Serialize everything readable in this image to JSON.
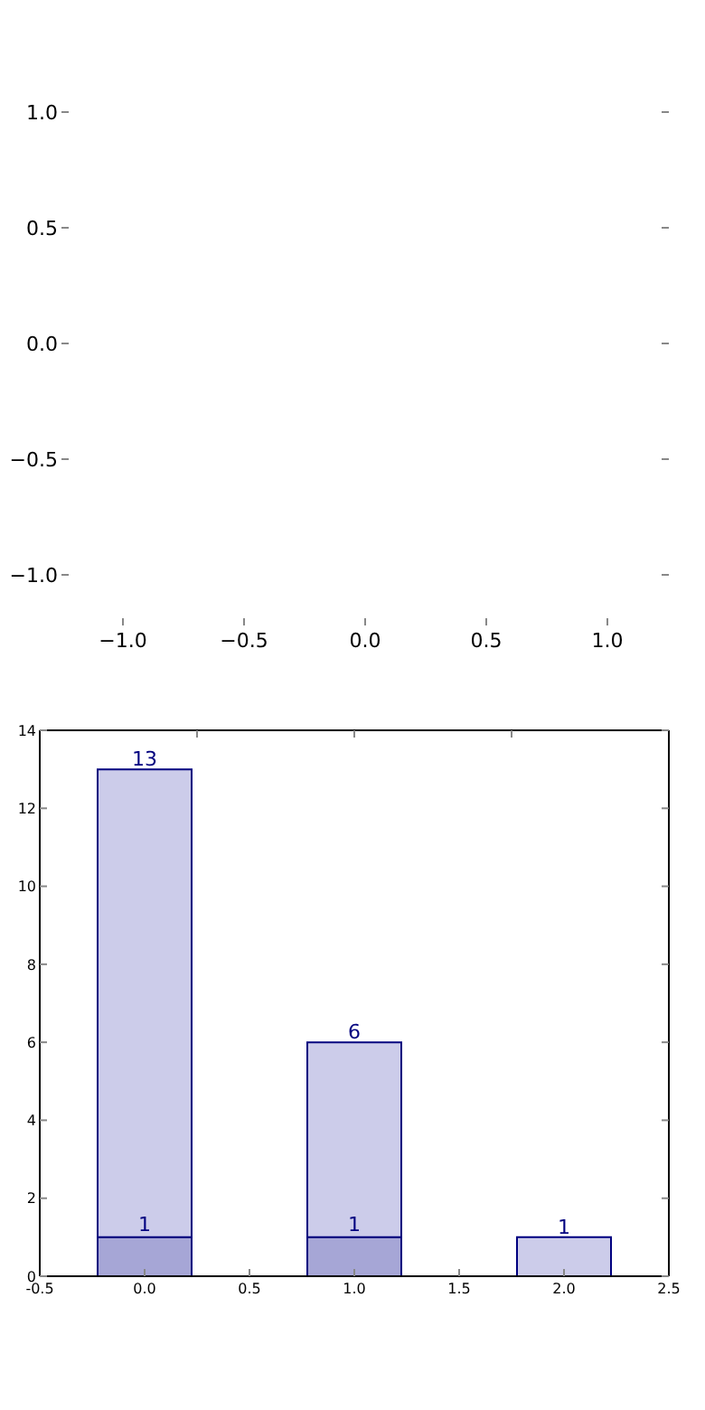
{
  "chart_data": [
    {
      "type": "scatter",
      "xlim": [
        -1,
        1
      ],
      "ylim": [
        -1,
        1
      ],
      "xticks": [
        {
          "value": -1,
          "label": "−1.0"
        },
        {
          "value": -0.5,
          "label": "−0.5"
        },
        {
          "value": 0,
          "label": "0.0"
        },
        {
          "value": 0.5,
          "label": "0.5"
        },
        {
          "value": 1,
          "label": "1.0"
        }
      ],
      "yticks": [
        {
          "value": -1,
          "label": "−1.0"
        },
        {
          "value": -0.5,
          "label": "−0.5"
        },
        {
          "value": 0,
          "label": "0.0"
        },
        {
          "value": 0.5,
          "label": "0.5"
        },
        {
          "value": 1,
          "label": "1.0"
        }
      ]
    },
    {
      "type": "bar",
      "x": [
        0,
        1,
        2
      ],
      "stacked": true,
      "series": [
        {
          "color": "#a6a6d6",
          "values": [
            1,
            1,
            null
          ],
          "value_labels": [
            "1",
            "1",
            null
          ]
        },
        {
          "color": "#ccccea",
          "values": [
            12,
            5,
            1
          ]
        }
      ],
      "totals": [
        "13",
        "6",
        "1"
      ],
      "xlim": [
        -0.5,
        2.5
      ],
      "xticks": [
        -0.5,
        {
          "value": 0,
          "label": "0.0"
        },
        0.5,
        {
          "value": 1,
          "label": "1.0"
        },
        1.5,
        {
          "value": 2,
          "label": "2.0"
        },
        2.5
      ],
      "ylim": [
        0,
        14
      ],
      "yticks": [
        0,
        2,
        4,
        6,
        8,
        10,
        12,
        14
      ]
    }
  ]
}
